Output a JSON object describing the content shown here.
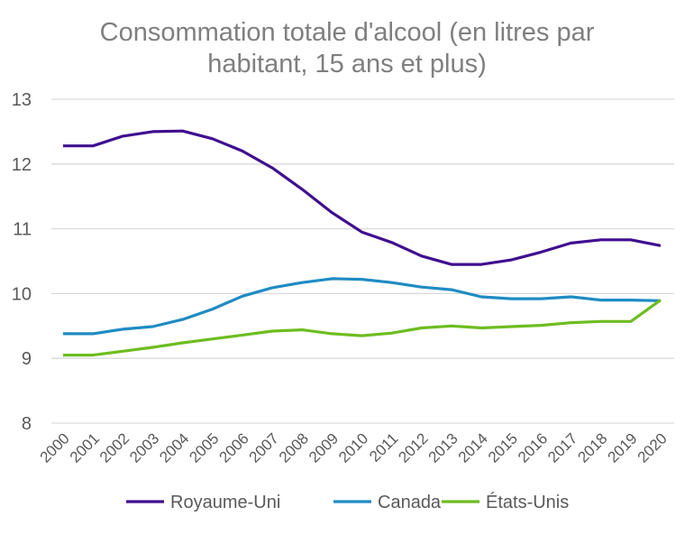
{
  "chart_data": {
    "type": "line",
    "title": "Consommation totale d'alcool (en litres par habitant, 15 ans et plus)",
    "title_lines": [
      "Consommation totale d'alcool (en litres par",
      "habitant, 15 ans et plus)"
    ],
    "xlabel": "",
    "ylabel": "",
    "ylim": [
      8,
      13
    ],
    "yticks": [
      "8",
      "9",
      "10",
      "11",
      "12",
      "13"
    ],
    "grid": true,
    "legend": "bottom",
    "categories": [
      "2000",
      "2001",
      "2002",
      "2003",
      "2004",
      "2005",
      "2006",
      "2007",
      "2008",
      "2009",
      "2010",
      "2011",
      "2012",
      "2013",
      "2014",
      "2015",
      "2016",
      "2017",
      "2018",
      "2019",
      "2020"
    ],
    "series": [
      {
        "name": "Royaume-Uni",
        "color": "#3f0f8f",
        "values": [
          12.28,
          12.28,
          12.43,
          12.5,
          12.51,
          12.39,
          12.2,
          11.94,
          11.61,
          11.25,
          10.95,
          10.79,
          10.58,
          10.45,
          10.45,
          10.52,
          10.64,
          10.78,
          10.83,
          10.83,
          10.74
        ]
      },
      {
        "name": "Canada",
        "color": "#1f8bc3",
        "values": [
          9.38,
          9.38,
          9.45,
          9.49,
          9.6,
          9.76,
          9.96,
          10.09,
          10.17,
          10.23,
          10.22,
          10.17,
          10.1,
          10.06,
          9.95,
          9.92,
          9.92,
          9.95,
          9.9,
          9.9,
          9.89
        ]
      },
      {
        "name": "États-Unis",
        "color": "#6dbd20",
        "values": [
          9.05,
          9.05,
          9.11,
          9.17,
          9.24,
          9.3,
          9.36,
          9.42,
          9.44,
          9.38,
          9.35,
          9.39,
          9.47,
          9.5,
          9.47,
          9.49,
          9.51,
          9.55,
          9.57,
          9.57,
          9.9
        ]
      }
    ]
  }
}
